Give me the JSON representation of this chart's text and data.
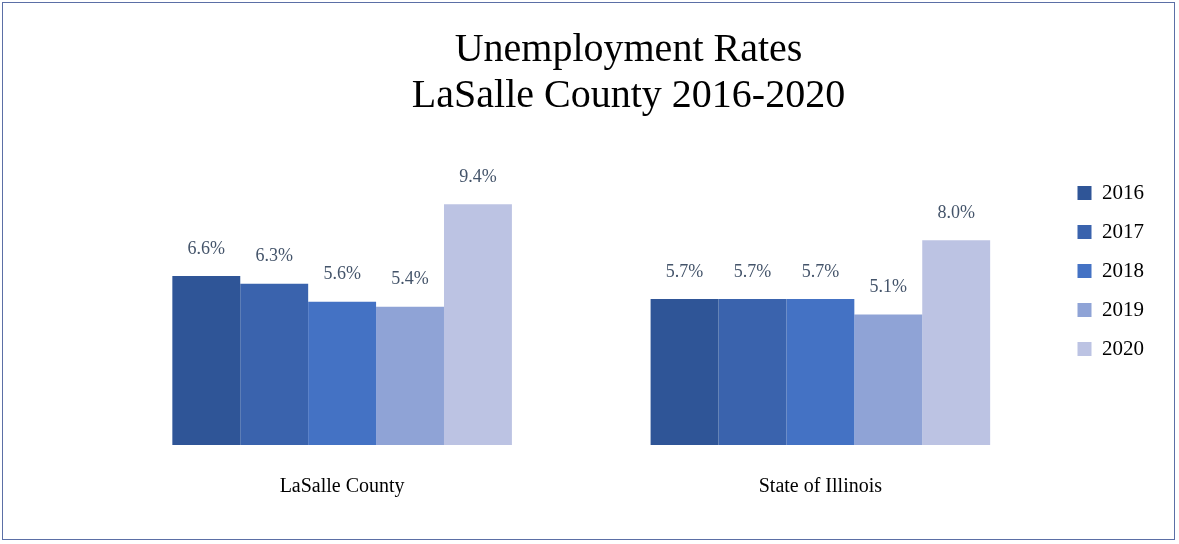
{
  "chart_data": {
    "type": "bar",
    "title": "Unemployment Rates\nLaSalle County 2016-2020",
    "categories": [
      "LaSalle County",
      "State of Illinois"
    ],
    "series": [
      {
        "name": "2016",
        "color": "#2f5597",
        "values": [
          6.6,
          5.7
        ],
        "value_labels": [
          "6.6%",
          "5.7%"
        ]
      },
      {
        "name": "2017",
        "color": "#3a63ad",
        "values": [
          6.3,
          5.7
        ],
        "value_labels": [
          "6.3%",
          "5.7%"
        ]
      },
      {
        "name": "2018",
        "color": "#4472c4",
        "values": [
          5.6,
          5.7
        ],
        "value_labels": [
          "5.6%",
          "5.7%"
        ]
      },
      {
        "name": "2019",
        "color": "#8fa3d6",
        "values": [
          5.4,
          5.1
        ],
        "value_labels": [
          "5.4%",
          "5.1%"
        ]
      },
      {
        "name": "2020",
        "color": "#bcc3e3",
        "values": [
          9.4,
          8.0
        ],
        "value_labels": [
          "9.4%",
          "8.0%"
        ]
      }
    ],
    "grid": false,
    "legend": "right"
  }
}
